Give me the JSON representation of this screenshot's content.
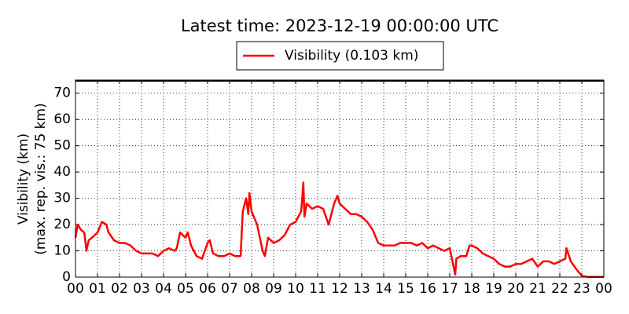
{
  "chart_data": {
    "type": "line",
    "title": "Latest time: 2023-12-19 00:00:00 UTC",
    "ylabel": [
      "Visibility (km)",
      "(max. rep. vis.: 75 km)"
    ],
    "x": [
      0,
      0.1,
      0.25,
      0.4,
      0.5,
      0.6,
      0.75,
      1.0,
      1.2,
      1.4,
      1.5,
      1.75,
      2.0,
      2.25,
      2.5,
      2.75,
      3.0,
      3.25,
      3.5,
      3.75,
      4.0,
      4.25,
      4.5,
      4.6,
      4.75,
      5.0,
      5.1,
      5.25,
      5.5,
      5.75,
      6.0,
      6.1,
      6.25,
      6.5,
      6.75,
      7.0,
      7.25,
      7.5,
      7.6,
      7.75,
      7.85,
      7.9,
      8.0,
      8.25,
      8.5,
      8.6,
      8.75,
      9.0,
      9.25,
      9.5,
      9.75,
      10.0,
      10.25,
      10.3,
      10.35,
      10.4,
      10.5,
      10.75,
      11.0,
      11.25,
      11.5,
      11.75,
      11.9,
      12.0,
      12.25,
      12.5,
      12.75,
      13.0,
      13.25,
      13.5,
      13.75,
      14.0,
      14.25,
      14.5,
      14.75,
      15.0,
      15.25,
      15.5,
      15.75,
      16.0,
      16.25,
      16.5,
      16.75,
      17.0,
      17.1,
      17.25,
      17.3,
      17.5,
      17.75,
      17.9,
      18.0,
      18.25,
      18.5,
      18.75,
      19.0,
      19.25,
      19.5,
      19.75,
      20.0,
      20.25,
      20.5,
      20.75,
      21.0,
      21.25,
      21.5,
      21.75,
      22.0,
      22.25,
      22.3,
      22.5,
      22.75,
      23.0,
      23.25,
      23.5,
      24.0
    ],
    "series": [
      {
        "name": "Visibility (0.103 km)",
        "color": "#ff0000",
        "values": [
          15,
          20,
          18,
          17,
          10,
          14,
          15,
          17,
          21,
          20,
          17,
          14,
          13,
          13,
          12,
          10,
          9,
          9,
          9,
          8,
          10,
          11,
          10,
          11,
          17,
          15,
          17,
          12,
          8,
          7,
          13,
          14,
          9,
          8,
          8,
          9,
          8,
          8,
          25,
          30,
          24,
          32,
          25,
          20,
          10,
          8,
          15,
          13,
          14,
          16,
          20,
          21,
          25,
          30,
          36,
          23,
          28,
          26,
          27,
          26,
          20,
          28,
          31,
          28,
          26,
          24,
          24,
          23,
          21,
          18,
          13,
          12,
          12,
          12,
          13,
          13,
          13,
          12,
          13,
          11,
          12,
          11,
          10,
          11,
          7,
          1,
          7,
          8,
          8,
          12,
          12,
          11,
          9,
          8,
          7,
          5,
          4,
          4,
          5,
          5,
          6,
          7,
          4,
          6,
          6,
          5,
          6,
          7,
          11,
          6,
          3,
          0.5,
          0.1,
          0.1,
          0.1
        ]
      }
    ],
    "xlim": [
      0,
      24
    ],
    "xticks": [
      {
        "value": 0,
        "label": "00"
      },
      {
        "value": 1,
        "label": "01"
      },
      {
        "value": 2,
        "label": "02"
      },
      {
        "value": 3,
        "label": "03"
      },
      {
        "value": 4,
        "label": "04"
      },
      {
        "value": 5,
        "label": "05"
      },
      {
        "value": 6,
        "label": "06"
      },
      {
        "value": 7,
        "label": "07"
      },
      {
        "value": 8,
        "label": "08"
      },
      {
        "value": 9,
        "label": "09"
      },
      {
        "value": 10,
        "label": "10"
      },
      {
        "value": 11,
        "label": "11"
      },
      {
        "value": 12,
        "label": "12"
      },
      {
        "value": 13,
        "label": "13"
      },
      {
        "value": 14,
        "label": "14"
      },
      {
        "value": 15,
        "label": "15"
      },
      {
        "value": 16,
        "label": "16"
      },
      {
        "value": 17,
        "label": "17"
      },
      {
        "value": 18,
        "label": "18"
      },
      {
        "value": 19,
        "label": "19"
      },
      {
        "value": 20,
        "label": "20"
      },
      {
        "value": 21,
        "label": "21"
      },
      {
        "value": 22,
        "label": "22"
      },
      {
        "value": 23,
        "label": "23"
      },
      {
        "value": 24,
        "label": "00"
      }
    ],
    "ylim": [
      0,
      75
    ],
    "yticks": [
      0,
      10,
      20,
      30,
      40,
      50,
      60,
      70
    ],
    "grid": true,
    "legend": "top"
  }
}
